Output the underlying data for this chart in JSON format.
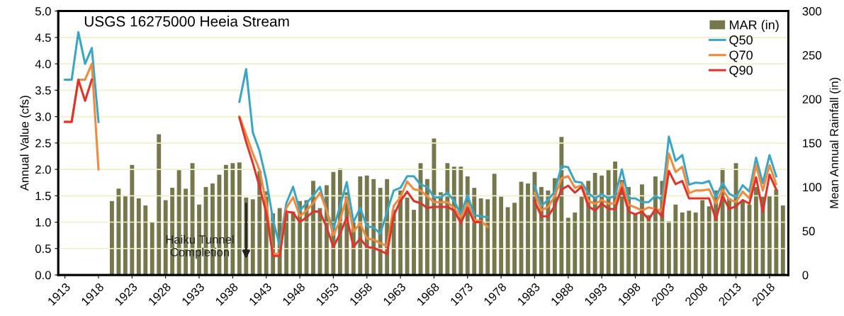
{
  "chart_data": {
    "type": "line",
    "title": "USGS 16275000 Heeia Stream",
    "ylabel": "Annual Value (cfs)",
    "y2label": "Mean Annual Rainfall (in)",
    "x": [
      1913,
      1914,
      1915,
      1916,
      1917,
      1918,
      1919,
      1939,
      1940,
      1941,
      1942,
      1943,
      1944,
      1945,
      1946,
      1947,
      1948,
      1949,
      1950,
      1951,
      1952,
      1953,
      1954,
      1955,
      1956,
      1957,
      1958,
      1959,
      1960,
      1961,
      1962,
      1963,
      1964,
      1965,
      1966,
      1967,
      1968,
      1969,
      1970,
      1971,
      1972,
      1973,
      1974,
      1975,
      1976,
      1977,
      1983,
      1984,
      1985,
      1986,
      1987,
      1988,
      1989,
      1990,
      1991,
      1992,
      1993,
      1994,
      1995,
      1996,
      1997,
      1998,
      1999,
      2000,
      2001,
      2002,
      2003,
      2004,
      2005,
      2006,
      2007,
      2008,
      2009,
      2010,
      2011,
      2012,
      2013,
      2014,
      2015,
      2016,
      2017,
      2018,
      2019
    ],
    "series": [
      {
        "name": "MAR (in)",
        "type": "bar",
        "axis": "y2",
        "color": "#77774c",
        "x": [
          1920,
          1921,
          1922,
          1923,
          1924,
          1925,
          1926,
          1927,
          1928,
          1929,
          1930,
          1931,
          1932,
          1933,
          1934,
          1935,
          1936,
          1937,
          1938,
          1939,
          1940,
          1941,
          1942,
          1943,
          1944,
          1945,
          1946,
          1947,
          1948,
          1949,
          1950,
          1951,
          1952,
          1953,
          1954,
          1955,
          1956,
          1957,
          1958,
          1959,
          1960,
          1961,
          1962,
          1963,
          1964,
          1965,
          1966,
          1967,
          1968,
          1969,
          1970,
          1971,
          1972,
          1973,
          1974,
          1975,
          1976,
          1977,
          1978,
          1979,
          1980,
          1981,
          1982,
          1983,
          1984,
          1985,
          1986,
          1987,
          1988,
          1989,
          1990,
          1991,
          1992,
          1993,
          1994,
          1995,
          1996,
          1997,
          1998,
          1999,
          2000,
          2001,
          2002,
          2003,
          2004,
          2005,
          2006,
          2007,
          2008,
          2009,
          2010,
          2011,
          2012,
          2013,
          2014,
          2015,
          2016,
          2017,
          2018,
          2019,
          2020
        ],
        "values": [
          84,
          98,
          90,
          125,
          87,
          79,
          60,
          160,
          85,
          99,
          119,
          98,
          127,
          80,
          100,
          104,
          114,
          125,
          127,
          128,
          88,
          86,
          118,
          95,
          70,
          76,
          70,
          72,
          84,
          85,
          107,
          76,
          102,
          117,
          121,
          94,
          60,
          112,
          113,
          109,
          99,
          109,
          74,
          96,
          88,
          74,
          127,
          109,
          155,
          94,
          127,
          123,
          123,
          112,
          99,
          87,
          86,
          115,
          89,
          77,
          82,
          106,
          104,
          117,
          100,
          96,
          110,
          157,
          65,
          71,
          89,
          107,
          116,
          113,
          119,
          129,
          108,
          100,
          69,
          103,
          68,
          112,
          107,
          61,
          80,
          71,
          73,
          71,
          85,
          78,
          96,
          121,
          87,
          127,
          84,
          80,
          100,
          89,
          90,
          97,
          79
        ]
      },
      {
        "name": "Q50",
        "color": "#3aa6c6",
        "values": [
          3.7,
          3.7,
          4.6,
          4.0,
          4.3,
          2.9,
          null,
          3.28,
          3.9,
          2.7,
          2.35,
          1.8,
          1.05,
          0.55,
          1.36,
          1.67,
          1.22,
          1.36,
          1.5,
          1.67,
          1.2,
          0.87,
          1.3,
          1.76,
          1.0,
          1.27,
          0.92,
          0.9,
          0.78,
          1.2,
          1.6,
          1.65,
          1.87,
          1.87,
          1.71,
          1.67,
          1.47,
          1.47,
          1.56,
          1.4,
          1.15,
          1.51,
          1.13,
          1.11,
          1.09,
          null,
          1.69,
          1.31,
          1.42,
          1.58,
          2.06,
          2.04,
          1.77,
          1.75,
          1.55,
          1.45,
          1.53,
          1.45,
          1.5,
          2.0,
          1.45,
          1.45,
          1.38,
          1.38,
          1.5,
          1.42,
          2.62,
          2.16,
          2.27,
          1.71,
          1.75,
          1.74,
          1.78,
          1.47,
          1.74,
          1.54,
          1.47,
          1.7,
          1.58,
          2.22,
          1.74,
          2.27,
          1.87
        ]
      },
      {
        "name": "Q70",
        "color": "#f08a3c",
        "values": [
          2.9,
          2.9,
          3.7,
          3.7,
          4.0,
          2.0,
          null,
          3.0,
          2.66,
          2.3,
          1.99,
          1.36,
          0.4,
          0.4,
          1.27,
          1.47,
          1.11,
          1.22,
          1.36,
          1.56,
          1.22,
          0.75,
          1.04,
          1.47,
          0.82,
          0.98,
          0.69,
          0.67,
          0.6,
          0.55,
          1.31,
          1.47,
          1.77,
          1.62,
          1.6,
          1.49,
          1.38,
          1.38,
          1.38,
          1.27,
          1.09,
          1.36,
          1.04,
          1.02,
          0.91,
          null,
          1.56,
          1.22,
          1.29,
          1.49,
          1.83,
          1.87,
          1.65,
          1.7,
          1.4,
          1.35,
          1.42,
          1.35,
          1.36,
          1.75,
          1.33,
          1.28,
          1.22,
          1.28,
          1.25,
          1.22,
          2.3,
          1.95,
          2.05,
          1.55,
          1.6,
          1.6,
          1.62,
          1.35,
          1.62,
          1.43,
          1.38,
          1.58,
          1.45,
          2.08,
          1.6,
          2.08,
          1.72
        ]
      },
      {
        "name": "Q90",
        "color": "#e0332b",
        "values": [
          2.9,
          2.9,
          3.7,
          3.3,
          3.7,
          null,
          null,
          2.98,
          2.52,
          2.12,
          1.67,
          1.18,
          0.36,
          0.36,
          1.2,
          1.18,
          1.0,
          1.09,
          1.2,
          1.2,
          0.9,
          0.53,
          0.78,
          1.09,
          0.53,
          0.69,
          0.53,
          0.51,
          0.46,
          0.4,
          1.13,
          1.4,
          1.58,
          1.4,
          1.36,
          1.27,
          1.29,
          1.29,
          1.29,
          1.22,
          0.98,
          1.27,
          1.0,
          1.0,
          null,
          null,
          1.4,
          1.11,
          1.11,
          1.31,
          1.62,
          1.69,
          1.56,
          1.67,
          1.3,
          1.22,
          1.35,
          1.25,
          1.25,
          1.65,
          1.2,
          1.15,
          1.2,
          1.05,
          1.25,
          1.1,
          1.97,
          1.72,
          1.78,
          1.45,
          1.45,
          1.45,
          1.45,
          1.05,
          1.5,
          1.25,
          1.3,
          1.42,
          1.35,
          1.85,
          1.2,
          1.9,
          1.62
        ]
      }
    ],
    "xlim": [
      1912,
      2020.8
    ],
    "xticks": [
      1913,
      1918,
      1923,
      1928,
      1933,
      1938,
      1943,
      1948,
      1953,
      1958,
      1963,
      1968,
      1973,
      1978,
      1983,
      1988,
      1993,
      1998,
      2003,
      2008,
      2013,
      2018
    ],
    "ylim": [
      0,
      5
    ],
    "yticks": [
      {
        "value": 0,
        "label": "0.0"
      },
      {
        "value": 0.5,
        "label": "0.5"
      },
      {
        "value": 1,
        "label": "1.0"
      },
      {
        "value": 1.5,
        "label": "1.5"
      },
      {
        "value": 2,
        "label": "2.0"
      },
      {
        "value": 2.5,
        "label": "2.5"
      },
      {
        "value": 3,
        "label": "3.0"
      },
      {
        "value": 3.5,
        "label": "3.5"
      },
      {
        "value": 4,
        "label": "4.0"
      },
      {
        "value": 4.5,
        "label": "4.5"
      },
      {
        "value": 5,
        "label": "5.0"
      }
    ],
    "y2lim": [
      0,
      300
    ],
    "y2ticks": [
      0,
      50,
      100,
      150,
      200,
      250,
      300
    ],
    "annotations": [
      {
        "text": "Haiku Tunnel\nCompletion",
        "x": 1940,
        "y": 0.27
      }
    ],
    "grid": "y",
    "legend": "top right"
  }
}
